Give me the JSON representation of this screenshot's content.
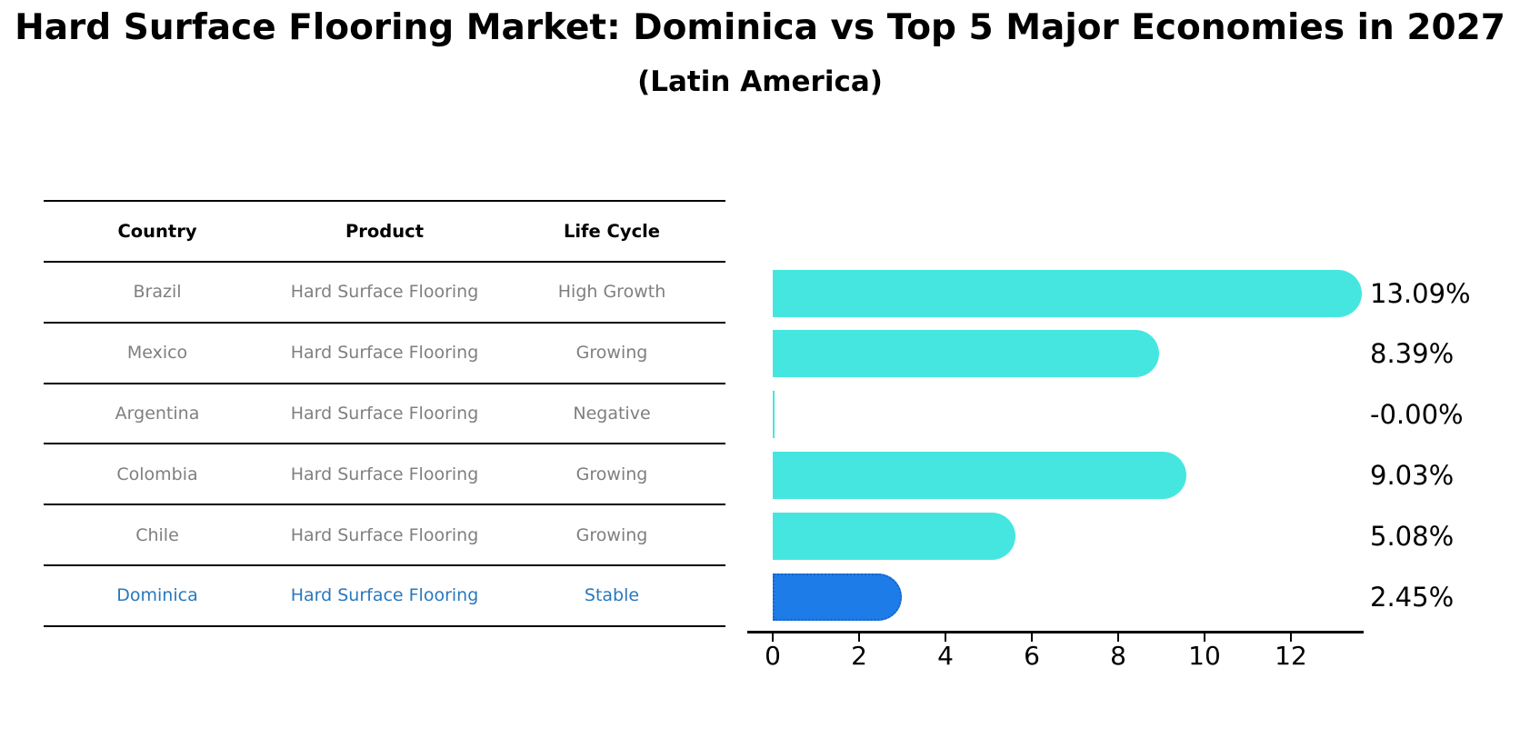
{
  "title": "Hard Surface Flooring Market: Dominica vs Top 5 Major Economies in 2027",
  "subtitle": "(Latin America)",
  "table": {
    "headers": [
      "Country",
      "Product",
      "Life Cycle"
    ],
    "rows": [
      {
        "country": "Brazil",
        "product": "Hard Surface Flooring",
        "life_cycle": "High Growth",
        "highlight": false
      },
      {
        "country": "Mexico",
        "product": "Hard Surface Flooring",
        "life_cycle": "Growing",
        "highlight": false
      },
      {
        "country": "Argentina",
        "product": "Hard Surface Flooring",
        "life_cycle": "Negative",
        "highlight": false
      },
      {
        "country": "Colombia",
        "product": "Hard Surface Flooring",
        "life_cycle": "Growing",
        "highlight": false
      },
      {
        "country": "Chile",
        "product": "Hard Surface Flooring",
        "life_cycle": "Growing",
        "highlight": false
      },
      {
        "country": "Dominica",
        "product": "Hard Surface Flooring",
        "life_cycle": "Stable",
        "highlight": true
      }
    ]
  },
  "chart_data": {
    "type": "bar",
    "orientation": "horizontal",
    "title": "Hard Surface Flooring Market: Dominica vs Top 5 Major Economies in 2027 (Latin America)",
    "categories": [
      "Brazil",
      "Mexico",
      "Argentina",
      "Colombia",
      "Chile",
      "Dominica"
    ],
    "values": [
      13.09,
      8.39,
      -0.0,
      9.03,
      5.08,
      2.45
    ],
    "value_labels": [
      "13.09%",
      "8.39%",
      "-0.00%",
      "9.03%",
      "5.08%",
      "2.45%"
    ],
    "unit": "percent",
    "xlim": [
      0,
      13.7
    ],
    "xticks": [
      0,
      2,
      4,
      6,
      8,
      10,
      12
    ],
    "grid": false,
    "legend": "none",
    "highlight_index": 5,
    "bar_color": "#46e6e0",
    "highlight_color": "#1e7ce8",
    "highlight_border_color": "#1565c8",
    "label_color": "#000000",
    "table_text_color": "#7f7f7f",
    "highlight_text_color": "#2878be"
  }
}
